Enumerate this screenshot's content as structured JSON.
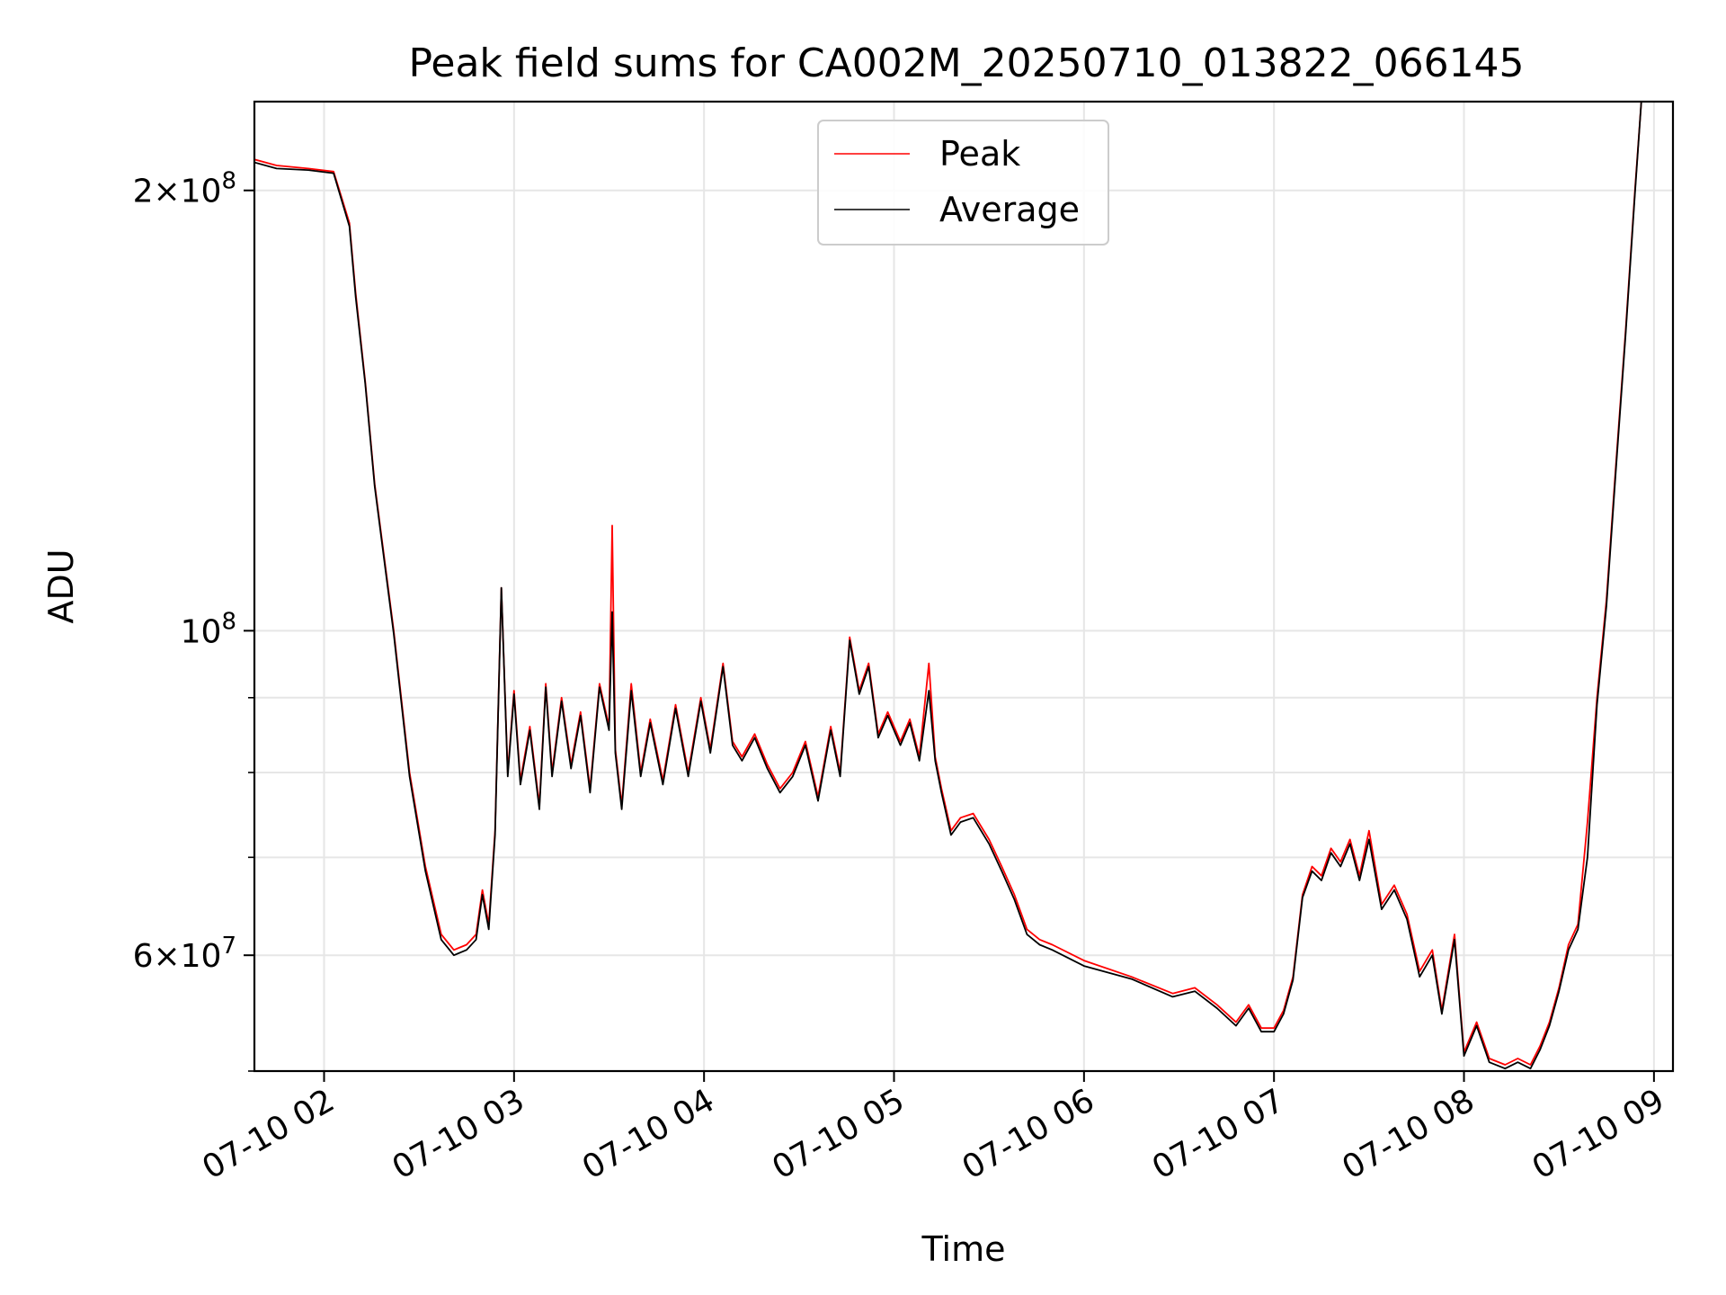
{
  "chart_data": {
    "type": "line",
    "title": "Peak field sums for CA002M_20250710_013822_066145",
    "xlabel": "Time",
    "ylabel": "ADU",
    "yscale": "log",
    "ylim": [
      50000000,
      230000000
    ],
    "xlim": [
      "07-10 01:38",
      "07-10 09:06"
    ],
    "grid": true,
    "legend_position": "top-center",
    "x_ticks": [
      {
        "time": "07-10 02:00",
        "label": "07-10 02"
      },
      {
        "time": "07-10 03:00",
        "label": "07-10 03"
      },
      {
        "time": "07-10 04:00",
        "label": "07-10 04"
      },
      {
        "time": "07-10 05:00",
        "label": "07-10 05"
      },
      {
        "time": "07-10 06:00",
        "label": "07-10 06"
      },
      {
        "time": "07-10 07:00",
        "label": "07-10 07"
      },
      {
        "time": "07-10 08:00",
        "label": "07-10 08"
      },
      {
        "time": "07-10 09:00",
        "label": "07-10 09"
      }
    ],
    "y_ticks": [
      {
        "value": 60000000,
        "mantissa": "6",
        "base": "10",
        "exp": "7"
      },
      {
        "value": 100000000,
        "mantissa": "",
        "base": "10",
        "exp": "8"
      },
      {
        "value": 200000000,
        "mantissa": "2",
        "base": "10",
        "exp": "8"
      }
    ],
    "y_minor_ticks": [
      50000000,
      70000000,
      80000000,
      90000000
    ],
    "x": [
      "07-10 01:38",
      "07-10 01:45",
      "07-10 01:55",
      "07-10 02:03",
      "07-10 02:08",
      "07-10 02:10",
      "07-10 02:13",
      "07-10 02:16",
      "07-10 02:22",
      "07-10 02:27",
      "07-10 02:32",
      "07-10 02:37",
      "07-10 02:41",
      "07-10 02:45",
      "07-10 02:48",
      "07-10 02:50",
      "07-10 02:52",
      "07-10 02:54",
      "07-10 02:56",
      "07-10 02:58",
      "07-10 03:00",
      "07-10 03:02",
      "07-10 03:05",
      "07-10 03:08",
      "07-10 03:10",
      "07-10 03:12",
      "07-10 03:15",
      "07-10 03:18",
      "07-10 03:21",
      "07-10 03:24",
      "07-10 03:27",
      "07-10 03:30",
      "07-10 03:31",
      "07-10 03:32",
      "07-10 03:34",
      "07-10 03:37",
      "07-10 03:40",
      "07-10 03:43",
      "07-10 03:47",
      "07-10 03:51",
      "07-10 03:55",
      "07-10 03:59",
      "07-10 04:02",
      "07-10 04:06",
      "07-10 04:09",
      "07-10 04:12",
      "07-10 04:16",
      "07-10 04:20",
      "07-10 04:24",
      "07-10 04:28",
      "07-10 04:32",
      "07-10 04:36",
      "07-10 04:40",
      "07-10 04:43",
      "07-10 04:46",
      "07-10 04:49",
      "07-10 04:52",
      "07-10 04:55",
      "07-10 04:58",
      "07-10 05:02",
      "07-10 05:05",
      "07-10 05:08",
      "07-10 05:11",
      "07-10 05:13",
      "07-10 05:15",
      "07-10 05:18",
      "07-10 05:21",
      "07-10 05:25",
      "07-10 05:30",
      "07-10 05:34",
      "07-10 05:38",
      "07-10 05:42",
      "07-10 05:46",
      "07-10 05:50",
      "07-10 06:00",
      "07-10 06:15",
      "07-10 06:28",
      "07-10 06:35",
      "07-10 06:42",
      "07-10 06:48",
      "07-10 06:52",
      "07-10 06:56",
      "07-10 07:00",
      "07-10 07:03",
      "07-10 07:06",
      "07-10 07:09",
      "07-10 07:12",
      "07-10 07:15",
      "07-10 07:18",
      "07-10 07:21",
      "07-10 07:24",
      "07-10 07:27",
      "07-10 07:30",
      "07-10 07:34",
      "07-10 07:38",
      "07-10 07:42",
      "07-10 07:46",
      "07-10 07:50",
      "07-10 07:53",
      "07-10 07:57",
      "07-10 08:00",
      "07-10 08:04",
      "07-10 08:08",
      "07-10 08:13",
      "07-10 08:17",
      "07-10 08:21",
      "07-10 08:24",
      "07-10 08:27",
      "07-10 08:30",
      "07-10 08:33",
      "07-10 08:36",
      "07-10 08:39",
      "07-10 08:42",
      "07-10 08:45",
      "07-10 08:48",
      "07-10 08:51",
      "07-10 08:54",
      "07-10 08:56"
    ],
    "series": [
      {
        "name": "Peak",
        "color": "#ff0000",
        "values": [
          210000000,
          208000000,
          207000000,
          206000000,
          190000000,
          170000000,
          148000000,
          126000000,
          100000000,
          80000000,
          69000000,
          62000000,
          60500000,
          61000000,
          62000000,
          66500000,
          63000000,
          73000000,
          107000000,
          80000000,
          91000000,
          79000000,
          86000000,
          76000000,
          92000000,
          80000000,
          90000000,
          81000000,
          88000000,
          78000000,
          92000000,
          86000000,
          118000000,
          83000000,
          76000000,
          92000000,
          80000000,
          87000000,
          79000000,
          89000000,
          80000000,
          90000000,
          83000000,
          95000000,
          84000000,
          82000000,
          85000000,
          81000000,
          78000000,
          80000000,
          84000000,
          77000000,
          86000000,
          80000000,
          99000000,
          91000000,
          95000000,
          85000000,
          88000000,
          84000000,
          87000000,
          82000000,
          95000000,
          82000000,
          78000000,
          73000000,
          74500000,
          75000000,
          72000000,
          69000000,
          66000000,
          62500000,
          61500000,
          61000000,
          59500000,
          58000000,
          56500000,
          57000000,
          55500000,
          54000000,
          55500000,
          53500000,
          53500000,
          55000000,
          58000000,
          66000000,
          69000000,
          68000000,
          71000000,
          69500000,
          72000000,
          68000000,
          73000000,
          65000000,
          67000000,
          64000000,
          58500000,
          60500000,
          55000000,
          62000000,
          51500000,
          54000000,
          51000000,
          50500000,
          51000000,
          50500000,
          52000000,
          54000000,
          57000000,
          61000000,
          63000000,
          74000000,
          90000000,
          105000000,
          130000000,
          160000000,
          200000000,
          230000000
        ]
      },
      {
        "name": "Average",
        "color": "#000000",
        "values": [
          209000000,
          207000000,
          206500000,
          205500000,
          189000000,
          169000000,
          147500000,
          125500000,
          99500000,
          79500000,
          68500000,
          61500000,
          60000000,
          60500000,
          61500000,
          66000000,
          62500000,
          72500000,
          107000000,
          79500000,
          90500000,
          78500000,
          85500000,
          75500000,
          91500000,
          79500000,
          89500000,
          80500000,
          87500000,
          77500000,
          91500000,
          85500000,
          103000000,
          82500000,
          75500000,
          91000000,
          79500000,
          86500000,
          78500000,
          88500000,
          79500000,
          89500000,
          82500000,
          94500000,
          83500000,
          81500000,
          84500000,
          80500000,
          77500000,
          79500000,
          83500000,
          76500000,
          85500000,
          79500000,
          98500000,
          90500000,
          94500000,
          84500000,
          87500000,
          83500000,
          86500000,
          81500000,
          91000000,
          81500000,
          77500000,
          72500000,
          74000000,
          74500000,
          71500000,
          68500000,
          65500000,
          62000000,
          61000000,
          60500000,
          59000000,
          57800000,
          56200000,
          56700000,
          55200000,
          53700000,
          55200000,
          53200000,
          53200000,
          54700000,
          57700000,
          65700000,
          68500000,
          67500000,
          70500000,
          69000000,
          71500000,
          67500000,
          72000000,
          64500000,
          66500000,
          63500000,
          58000000,
          60000000,
          54700000,
          61500000,
          51200000,
          53700000,
          50700000,
          50200000,
          50700000,
          50200000,
          51700000,
          53700000,
          56700000,
          60500000,
          62500000,
          70000000,
          89000000,
          104000000,
          129000000,
          159000000,
          199000000,
          230000000
        ]
      }
    ]
  }
}
